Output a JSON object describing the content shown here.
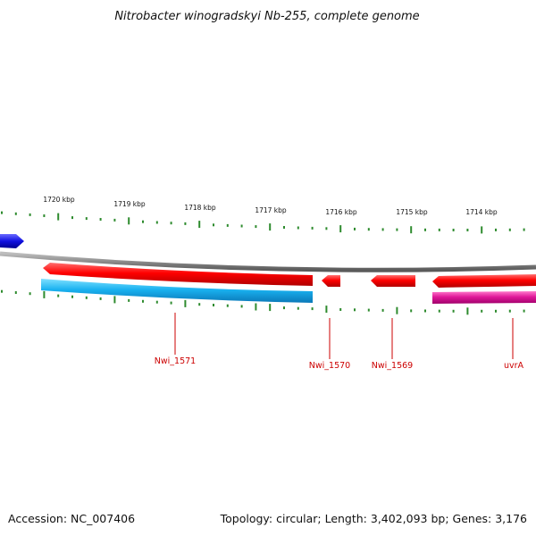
{
  "title": "Nitrobacter winogradskyi Nb-255, complete genome",
  "footer": {
    "accession": "Accession: NC_007406",
    "summary": "Topology: circular; Length: 3,402,093 bp; Genes: 3,176"
  },
  "scale": {
    "unit": "kbp",
    "labels": [
      "1720 kbp",
      "1719 kbp",
      "1718 kbp",
      "1717 kbp",
      "1716 kbp",
      "1715 kbp",
      "1714 kbp"
    ]
  },
  "colors": {
    "background": "#ffffff",
    "backbone": "#8a8a8a",
    "tick": "#2e8b2e",
    "forward_gene": "#ff0000",
    "reverse_gene": "#1ab2f0",
    "rrna_gene": "#e0199a",
    "other_gene": "#1010e0",
    "label": "#cc0000"
  },
  "genes": [
    {
      "name": "Nwi_1571",
      "strand": "forward",
      "color": "#ff0000"
    },
    {
      "name": "Nwi_1571",
      "strand": "reverse",
      "color": "#1ab2f0"
    },
    {
      "name": "Nwi_1570",
      "strand": "forward",
      "color": "#ff0000"
    },
    {
      "name": "Nwi_1569",
      "strand": "forward",
      "color": "#ff0000"
    },
    {
      "name": "uvrA",
      "strand": "forward",
      "color": "#ff0000"
    },
    {
      "name": "uvrA",
      "strand": "reverse",
      "color": "#e0199a"
    }
  ],
  "gene_labels": [
    "Nwi_1571",
    "Nwi_1570",
    "Nwi_1569",
    "uvrA"
  ]
}
